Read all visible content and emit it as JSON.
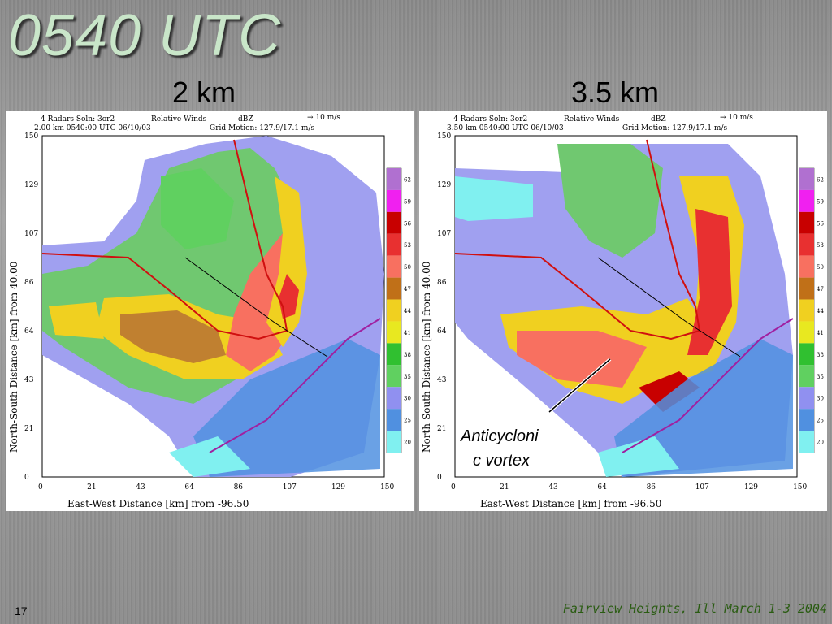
{
  "slide": {
    "title": "0540 UTC",
    "number": "17",
    "footer": "Fairview Heights, Ill March 1-3 2004"
  },
  "panels": [
    {
      "heading": "2 km",
      "header_line1": "4 Radars Soln: 3or2",
      "header_line2": "2.00 km  0540:00 UTC   06/10/03",
      "winds": "Relative Winds",
      "units": "dBZ",
      "grid_motion": "Grid Motion: 127.9/17.1 m/s",
      "scale": "→ 10 m/s",
      "x_label": "East-West Distance [km] from   -96.50",
      "y_label": "North-South Distance [km] from  40.00",
      "x_ticks": [
        "0",
        "21",
        "43",
        "64",
        "86",
        "107",
        "129",
        "150"
      ],
      "y_ticks": [
        "150",
        "129",
        "107",
        "86",
        "64",
        "43",
        "21",
        "0"
      ],
      "annotation": ""
    },
    {
      "heading": "3.5 km",
      "header_line1": "4 Radars Soln: 3or2",
      "header_line2": "3.50 km  0540:00 UTC   06/10/03",
      "winds": "Relative Winds",
      "units": "dBZ",
      "grid_motion": "Grid Motion: 127.9/17.1 m/s",
      "scale": "→ 10 m/s",
      "x_label": "East-West Distance [km] from   -96.50",
      "y_label": "North-South Distance [km] from  40.00",
      "x_ticks": [
        "0",
        "21",
        "43",
        "64",
        "86",
        "107",
        "129",
        "150"
      ],
      "y_ticks": [
        "150",
        "129",
        "107",
        "86",
        "64",
        "43",
        "21",
        "0"
      ],
      "annotation_line1": "Anticycloni",
      "annotation_line2": "c vortex"
    }
  ],
  "colorbar": {
    "labels": [
      "62",
      "59",
      "56",
      "53",
      "50",
      "47",
      "44",
      "41",
      "38",
      "35",
      "30",
      "25",
      "20"
    ],
    "colors": [
      "#b070d0",
      "#f020f0",
      "#c80000",
      "#e83030",
      "#f87060",
      "#c07018",
      "#f0d020",
      "#e8e820",
      "#30c030",
      "#60d060",
      "#9090f0",
      "#5090e0",
      "#80f0f0"
    ]
  }
}
